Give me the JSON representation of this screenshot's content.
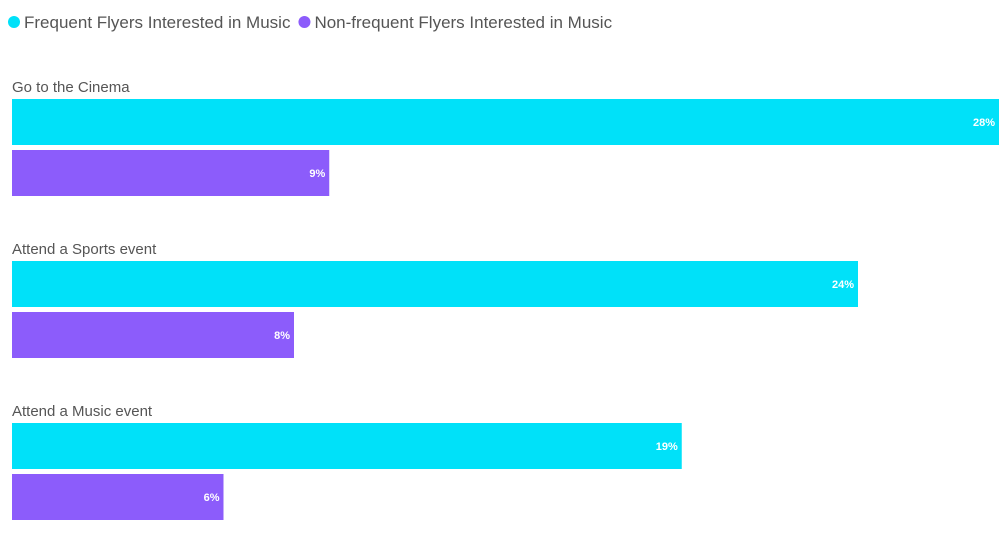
{
  "chart_data": {
    "type": "bar",
    "orientation": "horizontal",
    "title": "",
    "xlabel": "",
    "ylabel": "",
    "xlim": [
      0,
      28
    ],
    "grid": false,
    "legend_position": "top-left",
    "categories": [
      "Go to the Cinema",
      "Attend a Sports event",
      "Attend a Music event"
    ],
    "series": [
      {
        "name": "Frequent Flyers Interested in Music",
        "color": "#00e1f9",
        "values": [
          28,
          24,
          19
        ],
        "labels": [
          "28%",
          "24%",
          "19%"
        ]
      },
      {
        "name": "Non-frequent Flyers Interested in Music",
        "color": "#8c5cfb",
        "values": [
          9,
          8,
          6
        ],
        "labels": [
          "9%",
          "8%",
          "6%"
        ]
      }
    ]
  }
}
